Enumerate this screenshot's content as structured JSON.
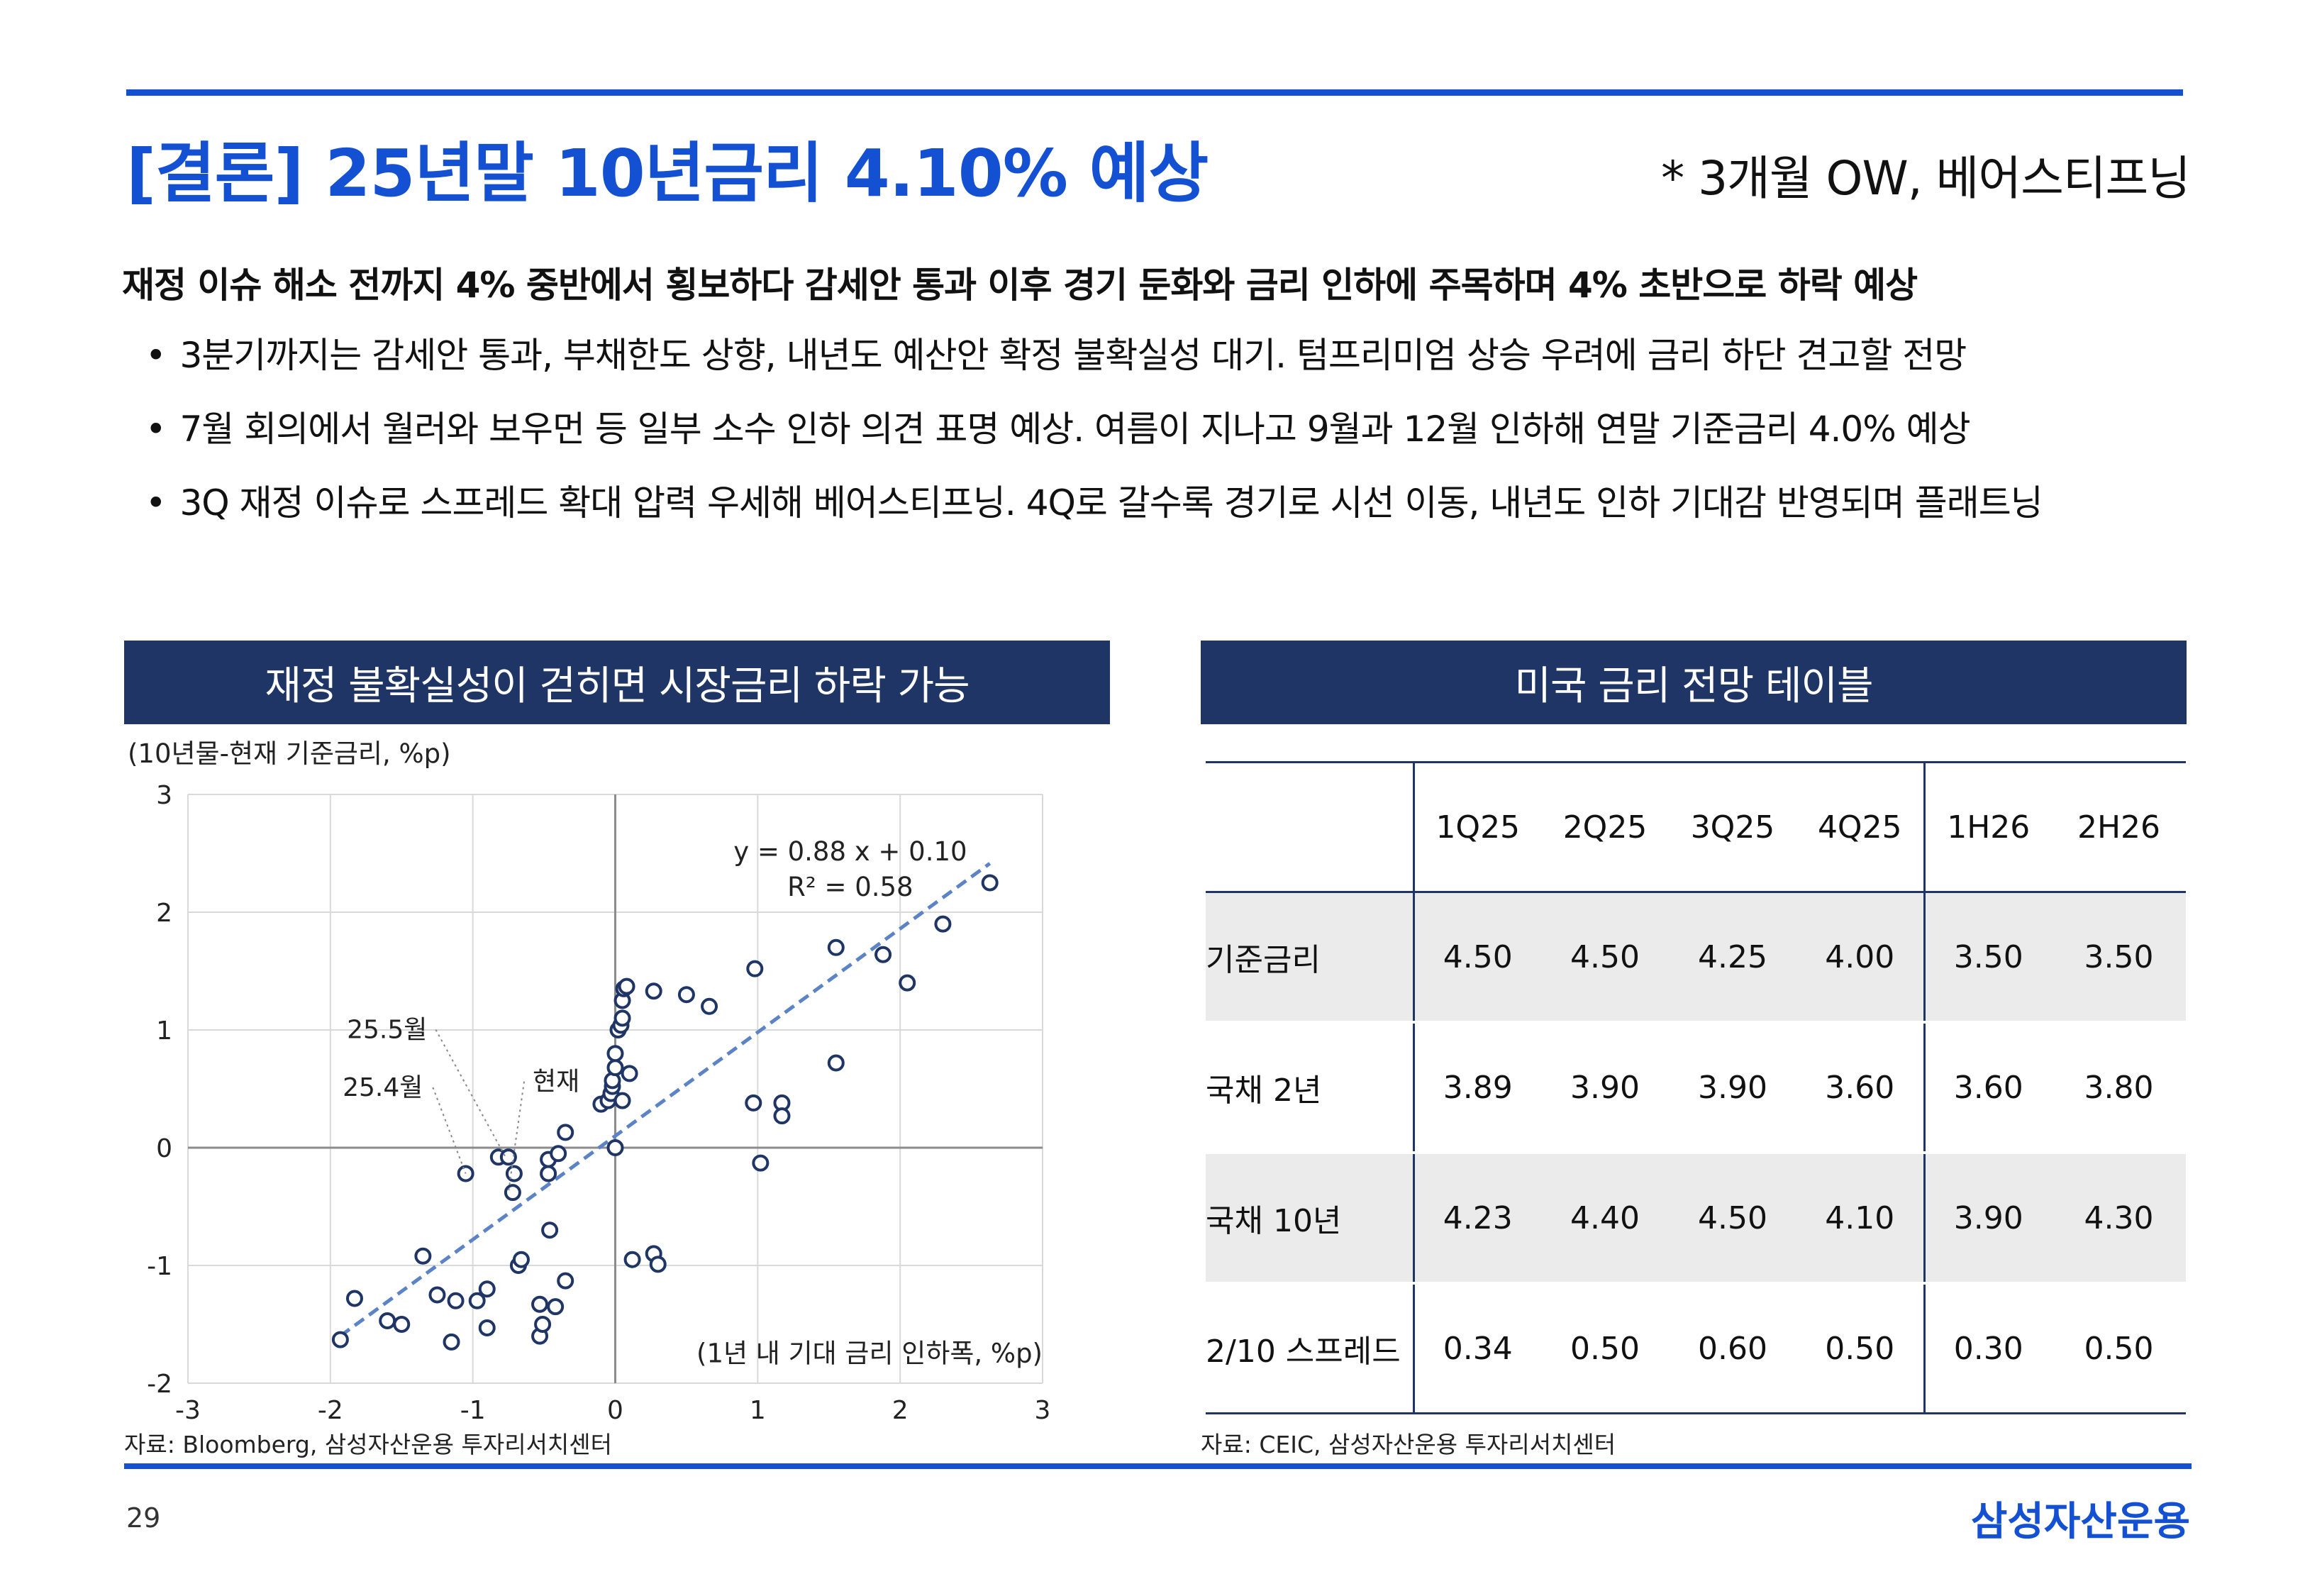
{
  "header": {
    "title": "[결론] 25년말 10년금리 4.10% 예상",
    "subtitle": "* 3개월 OW, 베어스티프닝"
  },
  "headline": "재정 이슈 해소 전까지 4% 중반에서 횡보하다 감세안 통과 이후 경기 둔화와 금리 인하에 주목하며 4% 초반으로 하락 예상",
  "bullets": [
    "3분기까지는 감세안 통과, 부채한도 상향, 내년도 예산안 확정 불확실성 대기. 텀프리미엄 상승 우려에 금리 하단 견고할 전망",
    "7월 회의에서 월러와 보우먼 등 일부 소수 인하 의견 표명 예상. 여름이 지나고 9월과 12월 인하해 연말 기준금리 4.0% 예상",
    "3Q 재정 이슈로 스프레드 확대 압력 우세해 베어스티프닝. 4Q로 갈수록 경기로 시선 이동, 내년도 인하 기대감 반영되며 플래트닝"
  ],
  "left_panel": {
    "title": "재정 불확실성이 걷히면 시장금리 하락 가능",
    "unit": "(10년물-현재 기준금리, %p)",
    "source": "자료: Bloomberg, 삼성자산운용 투자리서치센터"
  },
  "right_panel": {
    "title": "미국 금리 전망 테이블",
    "source": "자료: CEIC, 삼성자산운용 투자리서치센터",
    "columns": [
      "",
      "1Q25",
      "2Q25",
      "3Q25",
      "4Q25",
      "1H26",
      "2H26"
    ],
    "rows": [
      {
        "label": "기준금리",
        "values": [
          "4.50",
          "4.50",
          "4.25",
          "4.00",
          "3.50",
          "3.50"
        ]
      },
      {
        "label": "국채 2년",
        "values": [
          "3.89",
          "3.90",
          "3.90",
          "3.60",
          "3.60",
          "3.80"
        ]
      },
      {
        "label": "국채 10년",
        "values": [
          "4.23",
          "4.40",
          "4.50",
          "4.10",
          "3.90",
          "4.30"
        ]
      },
      {
        "label": "2/10 스프레드",
        "values": [
          "0.34",
          "0.50",
          "0.60",
          "0.50",
          "0.30",
          "0.50"
        ]
      }
    ]
  },
  "chart_data": {
    "type": "scatter",
    "xlim": [
      -3,
      3
    ],
    "ylim": [
      -2,
      3
    ],
    "xticks": [
      "-3",
      "-2",
      "-1",
      "0",
      "1",
      "2",
      "3"
    ],
    "yticks": [
      "-2",
      "-1",
      "0",
      "1",
      "2",
      "3"
    ],
    "xlabel": "(1년 내 기대 금리 인하폭, %p)",
    "ylabel": "(10년물-현재 기준금리, %p)",
    "trendline": {
      "slope": 0.88,
      "intercept": 0.1,
      "x_range": [
        -1.93,
        2.63
      ]
    },
    "equation": "y = 0.88 x + 0.10",
    "r_squared": "R² = 0.58",
    "annotations": [
      {
        "label": "25.5월",
        "x": -0.77,
        "y": -0.08
      },
      {
        "label": "25.4월",
        "x": -1.05,
        "y": -0.22
      },
      {
        "label": "현재",
        "x": -0.75,
        "y": -0.38
      }
    ],
    "points": [
      [
        -1.93,
        -1.63
      ],
      [
        -1.83,
        -1.28
      ],
      [
        -1.6,
        -1.47
      ],
      [
        -1.5,
        -1.5
      ],
      [
        -1.35,
        -0.92
      ],
      [
        -1.25,
        -1.25
      ],
      [
        -1.15,
        -1.65
      ],
      [
        -1.12,
        -1.3
      ],
      [
        -1.05,
        -0.22
      ],
      [
        -0.97,
        -1.3
      ],
      [
        -0.9,
        -1.2
      ],
      [
        -0.9,
        -1.53
      ],
      [
        -0.82,
        -0.08
      ],
      [
        -0.75,
        -0.08
      ],
      [
        -0.71,
        -0.22
      ],
      [
        -0.72,
        -0.38
      ],
      [
        -0.68,
        -1.0
      ],
      [
        -0.66,
        -0.95
      ],
      [
        -0.53,
        -1.6
      ],
      [
        -0.53,
        -1.33
      ],
      [
        -0.51,
        -1.5
      ],
      [
        -0.47,
        -0.22
      ],
      [
        -0.47,
        -0.1
      ],
      [
        -0.46,
        -0.7
      ],
      [
        -0.42,
        -1.35
      ],
      [
        -0.4,
        -0.05
      ],
      [
        -0.35,
        -1.13
      ],
      [
        -0.35,
        0.13
      ],
      [
        -0.1,
        0.37
      ],
      [
        -0.05,
        0.4
      ],
      [
        -0.03,
        0.46
      ],
      [
        -0.02,
        0.52
      ],
      [
        -0.02,
        0.57
      ],
      [
        0.0,
        0.68
      ],
      [
        0.0,
        0.8
      ],
      [
        0.0,
        0.0
      ],
      [
        0.02,
        1.0
      ],
      [
        0.04,
        1.04
      ],
      [
        0.05,
        0.4
      ],
      [
        0.05,
        1.1
      ],
      [
        0.05,
        1.25
      ],
      [
        0.06,
        1.35
      ],
      [
        0.08,
        1.37
      ],
      [
        0.1,
        0.63
      ],
      [
        0.12,
        -0.95
      ],
      [
        0.27,
        1.33
      ],
      [
        0.27,
        -0.9
      ],
      [
        0.3,
        -0.99
      ],
      [
        0.5,
        1.3
      ],
      [
        0.66,
        1.2
      ],
      [
        0.98,
        1.52
      ],
      [
        0.97,
        0.38
      ],
      [
        1.02,
        -0.13
      ],
      [
        1.17,
        0.38
      ],
      [
        1.17,
        0.27
      ],
      [
        1.55,
        1.7
      ],
      [
        1.55,
        0.72
      ],
      [
        1.88,
        1.64
      ],
      [
        2.05,
        1.4
      ],
      [
        2.3,
        1.9
      ],
      [
        2.63,
        2.25
      ]
    ]
  }
}
